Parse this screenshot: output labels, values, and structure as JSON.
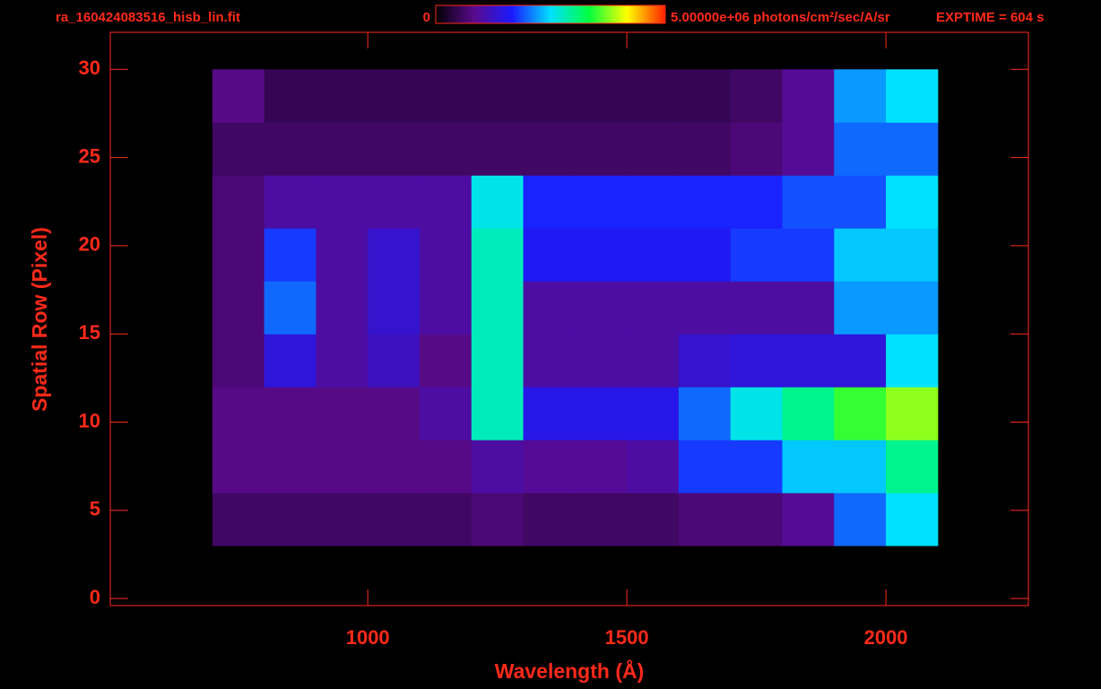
{
  "chart_data": {
    "type": "heatmap",
    "title": "ra_160424083516_hisb_lin.fit",
    "annotation": "EXPTIME = 604 s",
    "x_label": "Wavelength (Å)",
    "y_label": "Spatial Row (Pixel)",
    "axis_color": "#ff2a1a",
    "colormap": [
      "#000000",
      "#5a0a8c",
      "#1a1aff",
      "#00e0ff",
      "#00ff40",
      "#ffff00",
      "#ff2000"
    ],
    "zlim": [
      0,
      5000000
    ],
    "zticks": [
      0,
      {
        "value": 5000000,
        "label": "5.00000e+06 photons/cm²/sec/A/sr"
      }
    ],
    "xlim": [
      503,
      2275
    ],
    "ylim": [
      -0.4,
      32.1
    ],
    "xticks": [
      1000,
      1500,
      2000
    ],
    "yticks": [
      0,
      5,
      10,
      15,
      20,
      25,
      30
    ],
    "x_edges": [
      700,
      800,
      900,
      1000,
      1100,
      1200,
      1300,
      1400,
      1500,
      1600,
      1700,
      1800,
      1900,
      2000,
      2100
    ],
    "y_edges": [
      3,
      6,
      9,
      12,
      15,
      18,
      21,
      24,
      27,
      30
    ],
    "z": [
      [
        600000,
        600000,
        600000,
        600000,
        600000,
        700000,
        600000,
        600000,
        600000,
        700000,
        700000,
        900000,
        2000000,
        2500000
      ],
      [
        800000,
        800000,
        800000,
        800000,
        800000,
        1000000,
        900000,
        900000,
        1000000,
        1800000,
        1800000,
        2400000,
        2400000,
        3000000
      ],
      [
        800000,
        800000,
        800000,
        800000,
        1000000,
        2800000,
        1500000,
        1500000,
        1500000,
        2000000,
        2600000,
        3000000,
        3500000,
        3800000
      ],
      [
        700000,
        1400000,
        1000000,
        1200000,
        800000,
        2800000,
        1000000,
        1000000,
        1000000,
        1300000,
        1400000,
        1400000,
        1400000,
        2500000
      ],
      [
        700000,
        2000000,
        1000000,
        1300000,
        1000000,
        2800000,
        1000000,
        1000000,
        1000000,
        1000000,
        1000000,
        1000000,
        2200000,
        2200000
      ],
      [
        700000,
        1800000,
        1000000,
        1300000,
        1000000,
        2800000,
        1600000,
        1600000,
        1600000,
        1600000,
        1800000,
        1800000,
        2400000,
        2400000
      ],
      [
        700000,
        1000000,
        1000000,
        1000000,
        1000000,
        2600000,
        1700000,
        1700000,
        1700000,
        1700000,
        1700000,
        1900000,
        1900000,
        2500000
      ],
      [
        600000,
        600000,
        600000,
        600000,
        600000,
        600000,
        600000,
        600000,
        600000,
        600000,
        700000,
        900000,
        2000000,
        2000000
      ],
      [
        800000,
        500000,
        500000,
        500000,
        500000,
        500000,
        500000,
        500000,
        500000,
        500000,
        600000,
        900000,
        2200000,
        2500000
      ]
    ]
  }
}
